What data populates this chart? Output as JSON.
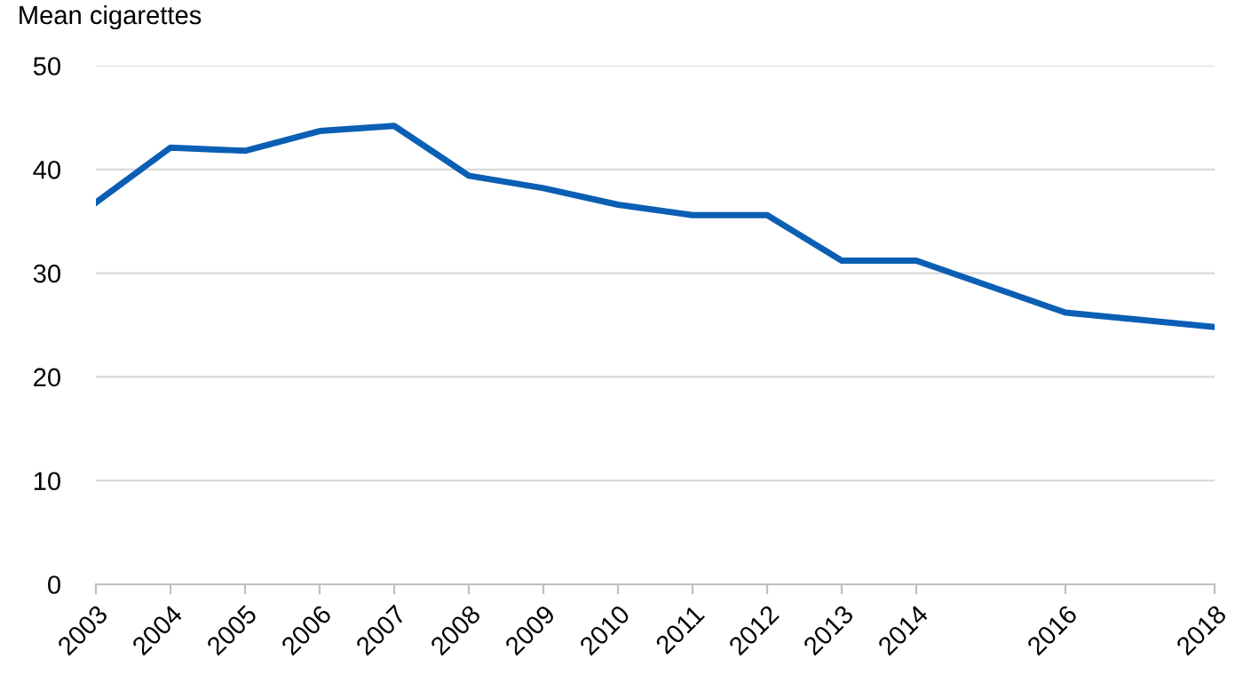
{
  "chart_data": {
    "type": "line",
    "ylabel": "Mean cigarettes",
    "x": [
      2003,
      2004,
      2005,
      2006,
      2007,
      2008,
      2009,
      2010,
      2011,
      2012,
      2013,
      2014,
      2016,
      2018
    ],
    "series": [
      {
        "color": "#0a5fb4",
        "values": [
          36.8,
          42.1,
          41.8,
          43.7,
          44.2,
          39.4,
          38.2,
          36.6,
          35.6,
          35.6,
          31.2,
          31.2,
          26.2,
          24.8
        ]
      }
    ],
    "xlim": [
      2003,
      2018
    ],
    "xticks": [
      2003,
      2004,
      2005,
      2006,
      2007,
      2008,
      2009,
      2010,
      2011,
      2012,
      2013,
      2014,
      2016,
      2018
    ],
    "ylim": [
      0,
      50
    ],
    "yticks": [
      0,
      10,
      20,
      30,
      40,
      50
    ],
    "grid": "y",
    "marker": "none",
    "line_style": "solid",
    "legend": false
  }
}
